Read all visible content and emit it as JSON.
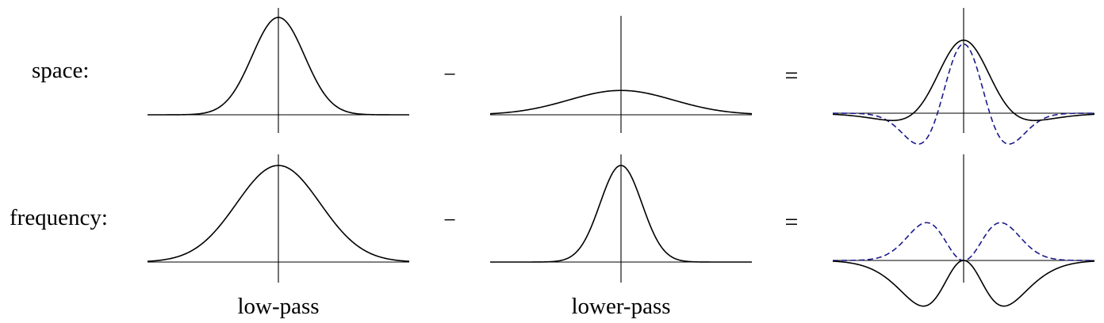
{
  "row_labels": {
    "space": "space:",
    "frequency": "frequency:"
  },
  "operators": {
    "minus": "−",
    "equals": "="
  },
  "column_labels": {
    "low_pass": "low-pass",
    "lower_pass": "lower-pass"
  },
  "colors": {
    "curve": "#000000",
    "axis": "#000000",
    "approximation": "#1a1a8c"
  },
  "panels": {
    "space_low_pass": {
      "curve": "gaussian",
      "x_range": [
        -5,
        5
      ],
      "sigma": 1.0,
      "amplitude": 1.0,
      "y_range": [
        -0.15,
        1.0
      ]
    },
    "space_lower_pass": {
      "curve": "gaussian",
      "x_range": [
        -5,
        5
      ],
      "sigma": 2.0,
      "amplitude": 0.25,
      "y_range": [
        -0.15,
        1.0
      ]
    },
    "space_difference": {
      "curve": "difference_of_gaussians",
      "x_range": [
        -5,
        5
      ],
      "sigma_narrow": 1.0,
      "sigma_wide": 2.0,
      "amplitude_narrow": 1.0,
      "amplitude_wide": 0.25,
      "approximation": "laplacian_of_gaussian",
      "approximation_sigma": 1.0,
      "approximation_amplitude": 0.71,
      "approximation_style": "dashed",
      "y_range": [
        -0.15,
        1.0
      ]
    },
    "frequency_low_pass": {
      "curve": "gaussian",
      "x_range": [
        -5,
        5
      ],
      "sigma": 1.6,
      "amplitude": 1.0,
      "y_range": [
        0,
        1.0
      ]
    },
    "frequency_lower_pass": {
      "curve": "gaussian",
      "x_range": [
        -5,
        5
      ],
      "sigma": 0.8,
      "amplitude": 1.0,
      "y_range": [
        0,
        1.0
      ]
    },
    "frequency_difference": {
      "curve": "difference_of_gaussians",
      "x_range": [
        -5,
        5
      ],
      "sigma_narrow": 0.8,
      "sigma_wide": 1.6,
      "amplitude_narrow": 1.0,
      "amplitude_wide": 1.0,
      "approximation": "frequency_of_laplacian_of_gaussian",
      "approximation_sigma": 1.0,
      "approximation_amplitude": 0.532,
      "approximation_style": "dashed",
      "y_range": [
        0,
        1.0
      ]
    }
  }
}
